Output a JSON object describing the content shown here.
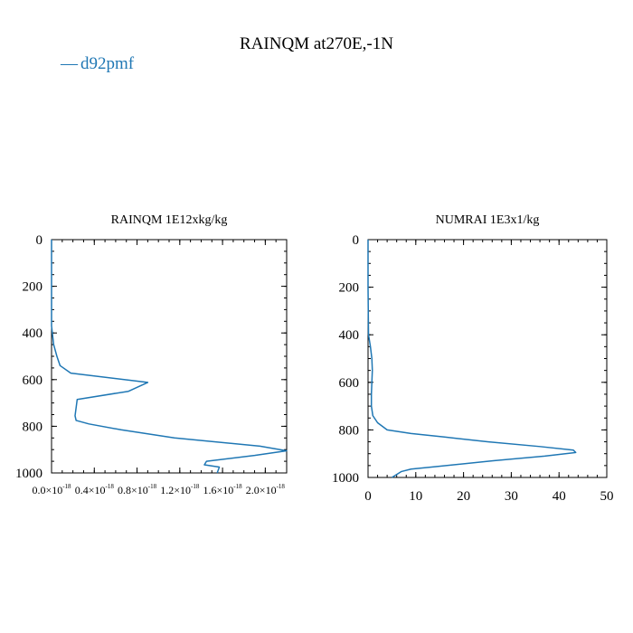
{
  "figure": {
    "title": "RAINQM at270E,-1N",
    "legend_label": "d92pmf",
    "legend_marker": "—",
    "series_color": "#1f77b4"
  },
  "chart_data": [
    {
      "type": "line",
      "title": "RAINQM  1E12xkg/kg",
      "xlabel": "",
      "ylabel": "",
      "xlim": [
        0,
        2.2e-18
      ],
      "ylim": [
        1000,
        0
      ],
      "x_ticks": [
        {
          "value": 0.0,
          "mant": "0.0×10",
          "exp": "-18"
        },
        {
          "value": 4e-19,
          "mant": "0.4×10",
          "exp": "-18"
        },
        {
          "value": 8e-19,
          "mant": "0.8×10",
          "exp": "-18"
        },
        {
          "value": 1.2e-18,
          "mant": "1.2×10",
          "exp": "-18"
        },
        {
          "value": 1.6e-18,
          "mant": "1.6×10",
          "exp": "-18"
        },
        {
          "value": 2e-18,
          "mant": "2.0×10",
          "exp": "-18"
        }
      ],
      "y_ticks": [
        0,
        200,
        400,
        600,
        800,
        1000
      ],
      "series": [
        {
          "name": "d92pmf",
          "x": [
            0,
            0,
            0,
            2e-20,
            5e-20,
            8e-20,
            1.8e-19,
            9e-19,
            7.2e-19,
            2.4e-19,
            2.2e-19,
            2.3e-19,
            3.5e-19,
            6.5e-19,
            1.15e-18,
            1.95e-18,
            2.2e-18,
            1.9e-18,
            1.45e-18,
            1.43e-18,
            1.57e-18,
            1.55e-18
          ],
          "y": [
            0,
            300,
            370,
            450,
            500,
            540,
            572,
            612,
            650,
            685,
            755,
            775,
            790,
            815,
            850,
            885,
            905,
            925,
            950,
            965,
            975,
            1000
          ]
        }
      ]
    },
    {
      "type": "line",
      "title": "NUMRAI  1E3x1/kg",
      "xlabel": "",
      "ylabel": "",
      "xlim": [
        0,
        50
      ],
      "ylim": [
        1000,
        0
      ],
      "x_ticks": [
        0,
        10,
        20,
        30,
        40,
        50
      ],
      "y_ticks": [
        0,
        200,
        400,
        600,
        800,
        1000
      ],
      "series": [
        {
          "name": "d92pmf",
          "x": [
            0,
            0,
            0.1,
            0.5,
            0.8,
            0.9,
            0.8,
            0.7,
            0.7,
            1.0,
            2.0,
            4.0,
            9.0,
            16.0,
            25.0,
            36.0,
            43.0,
            43.5,
            37.0,
            26.0,
            14.0,
            9.0,
            7.0,
            5.0
          ],
          "y": [
            0,
            200,
            400,
            450,
            500,
            550,
            600,
            650,
            700,
            740,
            770,
            800,
            815,
            830,
            850,
            870,
            885,
            895,
            910,
            930,
            955,
            965,
            975,
            1000
          ]
        }
      ]
    }
  ]
}
